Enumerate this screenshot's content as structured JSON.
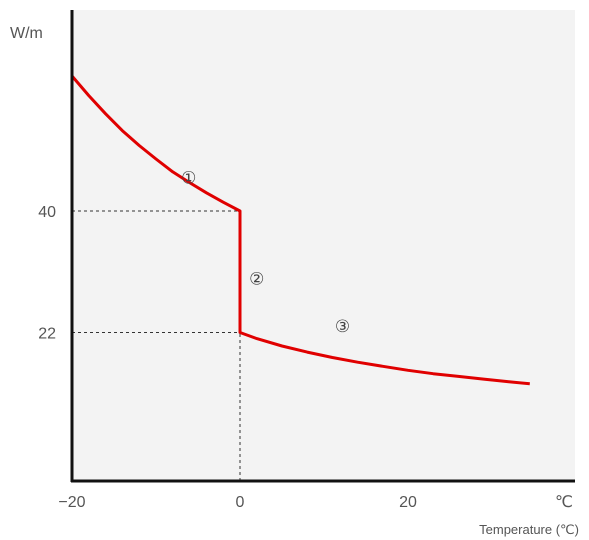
{
  "chart_data": {
    "type": "line",
    "title": "",
    "ylabel": "W/m",
    "xlabel": "Temperature (℃)",
    "x_unit": "℃",
    "xlim": [
      -20,
      35
    ],
    "ylim": [
      0,
      62
    ],
    "x_ticks": [
      {
        "value": -20,
        "label": "−20"
      },
      {
        "value": 0,
        "label": "0"
      },
      {
        "value": 20,
        "label": "20"
      }
    ],
    "y_ticks": [
      {
        "value": 40,
        "label": "40"
      },
      {
        "value": 22,
        "label": "22"
      }
    ],
    "grid": false,
    "background_color": "#f3f3f3",
    "line_color": "#e00000",
    "reference_lines": [
      {
        "type": "horizontal",
        "y": 40,
        "x_from": -20,
        "x_to": 0
      },
      {
        "type": "horizontal",
        "y": 22,
        "x_from": -20,
        "x_to": 0
      },
      {
        "type": "vertical",
        "x": 0,
        "y_from": 0,
        "y_to": 22
      }
    ],
    "series": [
      {
        "x": [
          -20,
          -18,
          -16,
          -14,
          -12,
          -10,
          -8,
          -6,
          -4,
          -2,
          0,
          0,
          2,
          5,
          8,
          11,
          14,
          17,
          20,
          23,
          26,
          29,
          32,
          34.5
        ],
        "y": [
          60,
          57.1,
          54.4,
          51.9,
          49.7,
          47.7,
          45.8,
          44.2,
          42.7,
          41.3,
          40,
          22,
          21.1,
          20.0,
          19.1,
          18.3,
          17.6,
          17.0,
          16.4,
          15.9,
          15.5,
          15.1,
          14.7,
          14.4
        ]
      }
    ],
    "annotations": [
      {
        "text": "①",
        "x": -6.1,
        "y": 45
      },
      {
        "text": "②",
        "x": 2.0,
        "y": 30
      },
      {
        "text": "③",
        "x": 12.2,
        "y": 23
      }
    ]
  }
}
